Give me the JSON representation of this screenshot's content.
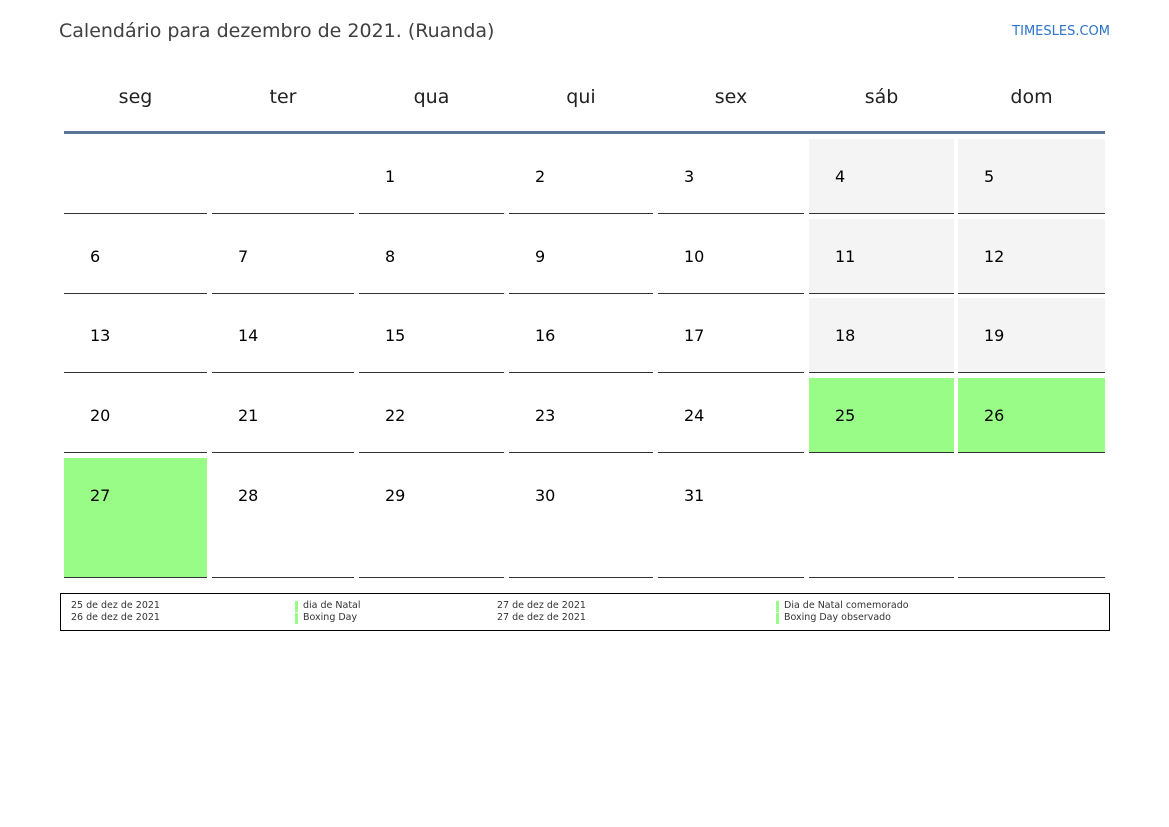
{
  "page": {
    "title": "Calendário para dezembro de 2021. (Ruanda)",
    "site": "TIMESLES.COM"
  },
  "colors": {
    "holiday": "#99fc86",
    "weekend": "#f4f4f4",
    "header_rule": "#587596",
    "link": "#2a73c9"
  },
  "calendar": {
    "weekdays": [
      "seg",
      "ter",
      "qua",
      "qui",
      "sex",
      "sáb",
      "dom"
    ],
    "weeks": [
      [
        "",
        "",
        "1",
        "2",
        "3",
        "4",
        "5"
      ],
      [
        "6",
        "7",
        "8",
        "9",
        "10",
        "11",
        "12"
      ],
      [
        "13",
        "14",
        "15",
        "16",
        "17",
        "18",
        "19"
      ],
      [
        "20",
        "21",
        "22",
        "23",
        "24",
        "25",
        "26"
      ],
      [
        "27",
        "28",
        "29",
        "30",
        "31",
        "",
        ""
      ]
    ],
    "holidays": [
      "25",
      "26",
      "27"
    ]
  },
  "legend": {
    "left": [
      {
        "date": "25 de dez de 2021",
        "name": "dia de Natal"
      },
      {
        "date": "26 de dez de 2021",
        "name": "Boxing Day"
      }
    ],
    "right": [
      {
        "date": "27 de dez de 2021",
        "name": "Dia de Natal comemorado"
      },
      {
        "date": "27 de dez de 2021",
        "name": "Boxing Day observado"
      }
    ]
  }
}
